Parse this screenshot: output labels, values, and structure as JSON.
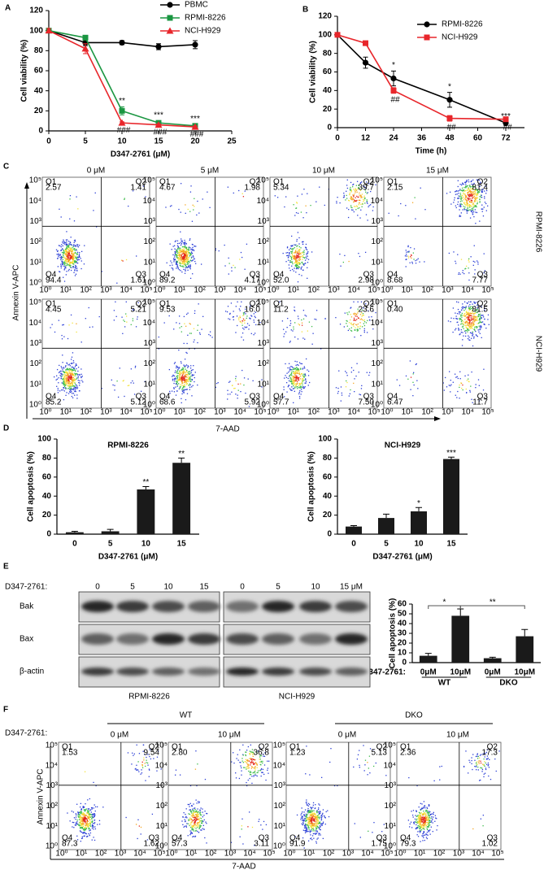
{
  "panel_labels": [
    "A",
    "B",
    "C",
    "D",
    "E",
    "F"
  ],
  "chart_data": [
    {
      "type": "line",
      "x": [
        0,
        5,
        10,
        15,
        20
      ],
      "xlim": [
        0,
        25
      ],
      "xticks": [
        0,
        5,
        10,
        15,
        20,
        25
      ],
      "ylim": [
        0,
        120
      ],
      "yticks": [
        0,
        20,
        40,
        60,
        80,
        100,
        120
      ],
      "x_label": "D347-2761 (μM)",
      "y_label": "Cell viability (%)",
      "legend": "top-right",
      "series": [
        {
          "name": "PBMC",
          "color": "#000000",
          "marker": "circle",
          "values": [
            100,
            88,
            88,
            84,
            86
          ],
          "errors": [
            2,
            3,
            2,
            3,
            4
          ]
        },
        {
          "name": "RPMI-8226",
          "color": "#1a9641",
          "marker": "square",
          "values": [
            100,
            93,
            20,
            8,
            5
          ],
          "errors": [
            2,
            2,
            4,
            2,
            1
          ],
          "significance": [
            null,
            null,
            "**",
            "***",
            "***"
          ],
          "significance_position": "above"
        },
        {
          "name": "NCI-H929",
          "color": "#e8262b",
          "marker": "triangle",
          "values": [
            100,
            82,
            8,
            6,
            4
          ],
          "errors": [
            2,
            5,
            1,
            1,
            1
          ],
          "significance": [
            null,
            null,
            "###",
            "###",
            "###"
          ],
          "significance_position": "below"
        }
      ]
    },
    {
      "type": "line",
      "x": [
        0,
        12,
        24,
        48,
        72
      ],
      "xlim": [
        0,
        80
      ],
      "xticks": [
        0,
        12,
        24,
        36,
        48,
        60,
        72
      ],
      "ylim": [
        0,
        120
      ],
      "yticks": [
        0,
        20,
        40,
        60,
        80,
        100,
        120
      ],
      "x_label": "Time (h)",
      "y_label": "Cell viability (%)",
      "legend": "top-right",
      "series": [
        {
          "name": "RPMI-8226",
          "color": "#000000",
          "marker": "circle",
          "values": [
            100,
            70,
            53,
            30,
            5
          ],
          "errors": [
            2,
            6,
            8,
            8,
            1
          ],
          "significance": [
            null,
            null,
            "*",
            "*",
            "***"
          ],
          "significance_position": "above"
        },
        {
          "name": "NCI-H929",
          "color": "#e8262b",
          "marker": "square",
          "values": [
            100,
            91,
            40,
            10,
            9
          ],
          "errors": [
            2,
            2,
            3,
            3,
            2
          ],
          "significance": [
            null,
            null,
            "##",
            "##",
            "##"
          ],
          "significance_position": "below"
        }
      ]
    },
    {
      "type": "bar",
      "title": "RPMI-8226",
      "categories": [
        "0",
        "5",
        "10",
        "15"
      ],
      "values": [
        2,
        3,
        47,
        75
      ],
      "errors": [
        1,
        2,
        3,
        5
      ],
      "significance": [
        null,
        null,
        "**",
        "**"
      ],
      "color": "#1a1a1a",
      "ylim": [
        0,
        100
      ],
      "yticks": [
        0,
        20,
        40,
        60,
        80,
        100
      ],
      "x_label": "D347-2761 (μM)",
      "y_label": "Cell apoptosis (%)"
    },
    {
      "type": "bar",
      "title": "NCI-H929",
      "categories": [
        "0",
        "5",
        "10",
        "15"
      ],
      "values": [
        8,
        17,
        24,
        79
      ],
      "errors": [
        1,
        4,
        4,
        2
      ],
      "significance": [
        null,
        null,
        "*",
        "***"
      ],
      "color": "#1a1a1a",
      "ylim": [
        0,
        100
      ],
      "yticks": [
        0,
        20,
        40,
        60,
        80,
        100
      ],
      "x_label": "D347-2761 (μM)",
      "y_label": "Cell apoptosis (%)"
    },
    {
      "type": "bar",
      "categories": [
        "0μM",
        "10μM",
        "0μM",
        "10μM"
      ],
      "groups": [
        "WT",
        "DKO"
      ],
      "x_label": "D347-2761:",
      "values": [
        7,
        48,
        4.5,
        27
      ],
      "errors": [
        2.5,
        7,
        1,
        7
      ],
      "ylim": [
        0,
        60
      ],
      "yticks": [
        0,
        10,
        20,
        30,
        40,
        50,
        60
      ],
      "y_label": "Cell apoptosis (%)",
      "comparisons": [
        {
          "from": 0,
          "to": 1,
          "label": "*"
        },
        {
          "from": 1,
          "to": 3,
          "label": "**"
        }
      ],
      "color": "#1a1a1a"
    }
  ],
  "flow_c": {
    "columns": [
      "0 μM",
      "5 μM",
      "10 μM",
      "15 μM"
    ],
    "quadrant_names": [
      "Q1",
      "Q2",
      "Q3",
      "Q4"
    ],
    "axis_ticks": [
      "10⁰",
      "10¹",
      "10²",
      "10³",
      "10⁴",
      "10⁵"
    ],
    "x_label": "7-AAD",
    "y_label": "Annexin V-APC",
    "rows": [
      {
        "name": "RPMI-8226",
        "plots": [
          [
            "2.57",
            "1.41",
            "1.61",
            "94.4"
          ],
          [
            "4.67",
            "1.98",
            "4.17",
            "89.2"
          ],
          [
            "5.34",
            "39.7",
            "2.98",
            "52.0"
          ],
          [
            "2.15",
            "81.4",
            "7.77",
            "8.68"
          ]
        ]
      },
      {
        "name": "NCI-H929",
        "plots": [
          [
            "4.45",
            "5.21",
            "5.12",
            "85.2"
          ],
          [
            "9.53",
            "16.0",
            "5.92",
            "68.6"
          ],
          [
            "11.2",
            "23.6",
            "7.50",
            "57.7"
          ],
          [
            "0.40",
            "81.5",
            "11.7",
            "6.47"
          ]
        ]
      }
    ]
  },
  "blot": {
    "treatment_label": "D347-2761:",
    "proteins": [
      "Bak",
      "Bax",
      "β-actin"
    ],
    "cell_lines": [
      {
        "name": "RPMI-8226",
        "doses": [
          "0",
          "5",
          "10",
          "15"
        ]
      },
      {
        "name": "NCI-H929",
        "doses": [
          "0",
          "5",
          "10",
          "15 μM"
        ]
      }
    ]
  },
  "flow_f": {
    "treatment_label": "D347-2761:",
    "quadrant_names": [
      "Q1",
      "Q2",
      "Q3",
      "Q4"
    ],
    "axis_ticks": [
      "10⁰",
      "10¹",
      "10²",
      "10³",
      "10⁴",
      "10⁵"
    ],
    "x_label": "7-AAD",
    "y_label": "Annexin V-APC",
    "groups": [
      {
        "name": "WT",
        "doses": [
          "0 μM",
          "10 μM"
        ]
      },
      {
        "name": "DKO",
        "doses": [
          "0 μM",
          "10 μM"
        ]
      }
    ],
    "plots": [
      [
        "1.53",
        "9.54",
        "1.62",
        "87.3"
      ],
      [
        "2.80",
        "36.8",
        "3.11",
        "57.3"
      ],
      [
        "1.23",
        "5.13",
        "1.75",
        "91.9"
      ],
      [
        "2.36",
        "17.3",
        "1.02",
        "79.3"
      ]
    ]
  }
}
